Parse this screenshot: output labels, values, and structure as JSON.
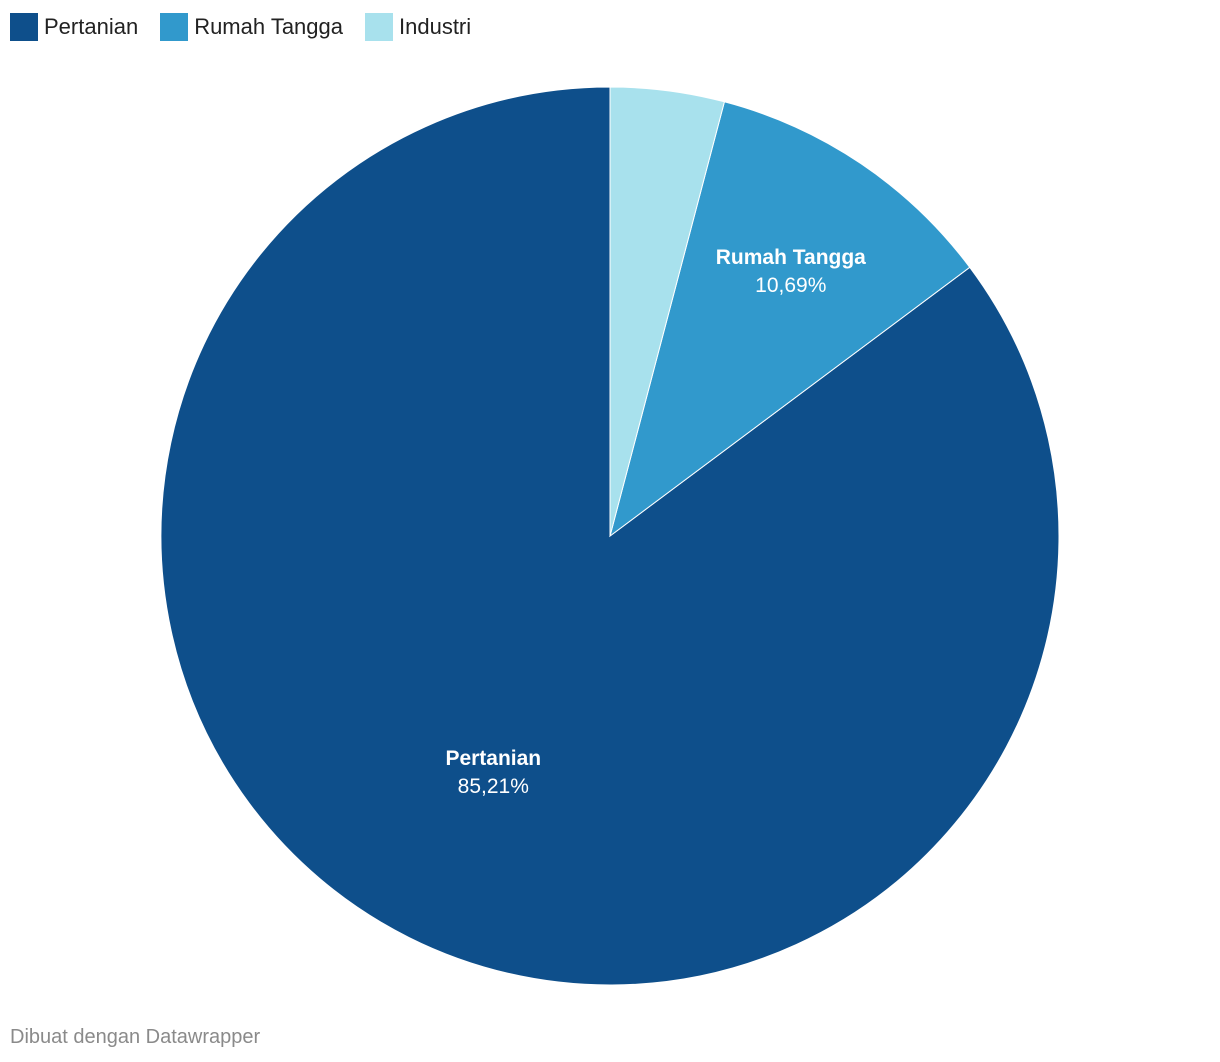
{
  "chart_data": {
    "type": "pie",
    "categories": [
      "Pertanian",
      "Rumah Tangga",
      "Industri"
    ],
    "values": [
      85.21,
      10.69,
      4.1
    ],
    "value_labels": [
      "85,21%",
      "10,69%",
      ""
    ],
    "colors": [
      "#0e4f8b",
      "#3199cc",
      "#a8e1ed"
    ],
    "show_label": [
      true,
      true,
      false
    ],
    "legend": {
      "position": "top-left",
      "items": [
        {
          "label": "Pertanian",
          "color": "#0e4f8b"
        },
        {
          "label": "Rumah Tangga",
          "color": "#3199cc"
        },
        {
          "label": "Industri",
          "color": "#a8e1ed"
        }
      ]
    }
  },
  "footer": {
    "credit": "Dibuat dengan Datawrapper"
  }
}
